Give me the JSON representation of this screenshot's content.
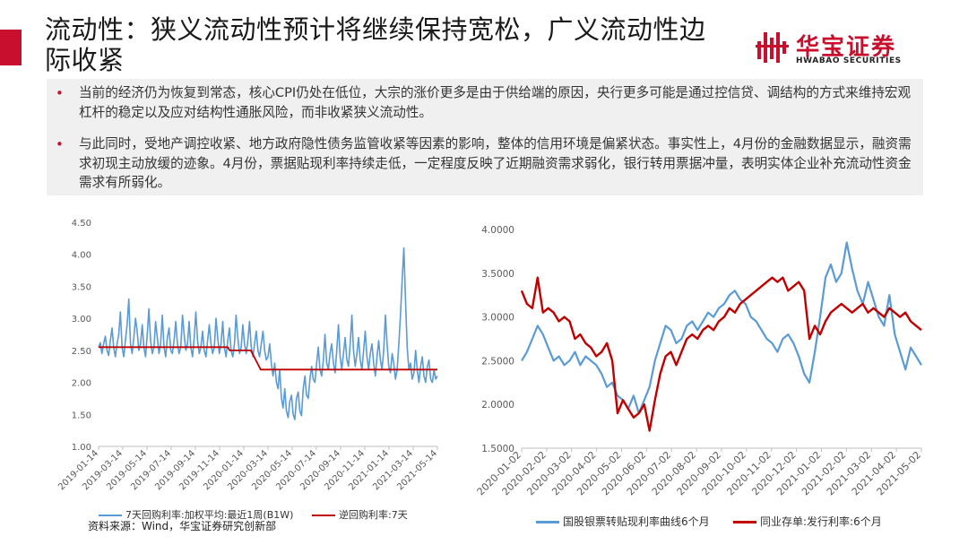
{
  "slide": {
    "title": "流动性：狭义流动性预计将继续保持宽松，广义流动性边际收紧",
    "accent_color": "#c8102e"
  },
  "logo": {
    "name_cn": "华宝证券",
    "name_en": "HWABAO SECURITIES",
    "icon": "hwabao-logo-icon"
  },
  "bullets": [
    "当前的经济仍为恢复到常态，核心CPI仍处在低位，大宗的涨价更多是由于供给端的原因，央行更多可能是通过控信贷、调结构的方式来维持宏观杠杆的稳定以及应对结构性通胀风险，而非收紧狭义流动性。",
    "与此同时，受地产调控收紧、地方政府隐性债务监管收紧等因素的影响，整体的信用环境是偏紧状态。事实性上，4月份的金融数据显示，融资需求初现主动放缓的迹象。4月份，票据贴现利率持续走低，一定程度反映了近期融资需求弱化，银行转用票据冲量，表明实体企业补充流动性资金需求有所弱化。"
  ],
  "source": "资料来源：Wind，华宝证券研究创新部",
  "chart_data": [
    {
      "type": "line",
      "ylim": [
        1.0,
        4.5
      ],
      "yticks": [
        "1.00",
        "1.50",
        "2.00",
        "2.50",
        "3.00",
        "3.50",
        "4.00",
        "4.50"
      ],
      "x_ticks": [
        "2019-01-14",
        "2019-03-14",
        "2019-05-14",
        "2019-07-14",
        "2019-09-14",
        "2019-11-14",
        "2020-01-14",
        "2020-03-14",
        "2020-05-14",
        "2020-07-14",
        "2020-09-14",
        "2020-11-14",
        "2021-01-14",
        "2021-03-14",
        "2021-05-14"
      ],
      "series": [
        {
          "name": "7天回购利率:加权平均:最近1周(B1W)",
          "color": "#5b9bd5",
          "values": [
            2.55,
            2.62,
            2.45,
            2.6,
            2.72,
            2.5,
            2.42,
            2.65,
            2.85,
            2.55,
            2.4,
            2.6,
            2.75,
            3.1,
            2.55,
            2.4,
            2.65,
            2.9,
            3.3,
            2.6,
            2.45,
            2.7,
            3.0,
            2.8,
            2.5,
            2.6,
            2.9,
            2.55,
            2.4,
            2.75,
            3.15,
            2.65,
            2.45,
            2.55,
            2.95,
            2.7,
            2.45,
            2.6,
            3.05,
            2.55,
            2.4,
            2.7,
            2.85,
            2.5,
            2.45,
            2.65,
            2.95,
            2.6,
            2.45,
            2.55,
            3.05,
            2.75,
            2.5,
            2.6,
            2.95,
            2.55,
            2.4,
            2.7,
            3.1,
            2.65,
            2.45,
            2.55,
            2.8,
            2.5,
            2.4,
            2.65,
            2.9,
            2.6,
            2.45,
            2.55,
            3.0,
            2.7,
            2.45,
            2.6,
            2.95,
            2.55,
            2.4,
            2.65,
            2.85,
            2.5,
            2.4,
            2.6,
            3.05,
            2.7,
            2.45,
            2.55,
            2.9,
            2.6,
            2.45,
            2.65,
            2.95,
            2.55,
            2.4,
            2.6,
            2.8,
            2.5,
            2.4,
            2.6,
            2.8,
            2.5,
            2.35,
            2.4,
            2.6,
            2.3,
            2.1,
            2.3,
            2.0,
            1.9,
            2.2,
            1.75,
            1.6,
            1.9,
            1.55,
            1.45,
            1.7,
            1.8,
            1.5,
            1.42,
            1.75,
            1.85,
            1.55,
            1.48,
            1.9,
            2.1,
            1.8,
            1.75,
            2.05,
            2.25,
            2.05,
            2.0,
            2.3,
            2.55,
            2.2,
            2.1,
            2.35,
            2.75,
            2.3,
            2.2,
            2.45,
            2.6,
            2.3,
            2.15,
            2.5,
            2.9,
            2.4,
            2.2,
            2.45,
            2.7,
            2.35,
            2.25,
            2.6,
            3.05,
            2.5,
            2.25,
            2.45,
            2.7,
            2.35,
            2.2,
            2.5,
            2.8,
            2.4,
            2.2,
            2.45,
            2.6,
            2.3,
            2.1,
            2.4,
            2.65,
            2.35,
            2.2,
            2.5,
            3.05,
            2.6,
            2.25,
            2.15,
            2.45,
            2.3,
            2.05,
            2.2,
            2.6,
            3.05,
            3.6,
            4.1,
            3.3,
            2.55,
            2.2,
            2.3,
            2.05,
            2.15,
            2.5,
            2.2,
            2.0,
            2.25,
            2.4,
            2.1,
            2.0,
            2.25,
            2.35,
            2.05,
            2.0,
            2.2,
            2.05,
            2.1
          ]
        },
        {
          "name": "逆回购利率:7天",
          "color": "#c00000",
          "values": [
            2.55,
            2.55,
            2.55,
            2.55,
            2.55,
            2.55,
            2.55,
            2.55,
            2.55,
            2.55,
            2.55,
            2.55,
            2.55,
            2.55,
            2.55,
            2.55,
            2.55,
            2.55,
            2.55,
            2.55,
            2.55,
            2.55,
            2.55,
            2.55,
            2.55,
            2.55,
            2.55,
            2.55,
            2.55,
            2.55,
            2.55,
            2.55,
            2.55,
            2.55,
            2.55,
            2.55,
            2.55,
            2.55,
            2.55,
            2.55,
            2.55,
            2.55,
            2.55,
            2.55,
            2.55,
            2.55,
            2.55,
            2.55,
            2.55,
            2.55,
            2.55,
            2.55,
            2.55,
            2.55,
            2.55,
            2.55,
            2.55,
            2.55,
            2.55,
            2.55,
            2.55,
            2.55,
            2.55,
            2.55,
            2.55,
            2.55,
            2.55,
            2.55,
            2.55,
            2.55,
            2.55,
            2.55,
            2.55,
            2.55,
            2.55,
            2.55,
            2.55,
            2.55,
            2.55,
            2.55,
            2.5,
            2.5,
            2.5,
            2.5,
            2.5,
            2.5,
            2.5,
            2.5,
            2.5,
            2.5,
            2.5,
            2.5,
            2.5,
            2.5,
            2.45,
            2.4,
            2.35,
            2.3,
            2.25,
            2.2,
            2.2,
            2.2,
            2.2,
            2.2,
            2.2,
            2.2,
            2.2,
            2.2,
            2.2,
            2.2,
            2.2,
            2.2,
            2.2,
            2.2,
            2.2,
            2.2,
            2.2,
            2.2,
            2.2,
            2.2,
            2.2,
            2.2,
            2.2,
            2.2,
            2.2,
            2.2,
            2.2,
            2.2,
            2.2,
            2.2,
            2.2,
            2.2,
            2.2,
            2.2,
            2.2,
            2.2,
            2.2,
            2.2,
            2.2,
            2.2,
            2.2,
            2.2,
            2.2,
            2.2,
            2.2,
            2.2,
            2.2,
            2.2,
            2.2,
            2.2,
            2.2,
            2.2,
            2.2,
            2.2,
            2.2,
            2.2,
            2.2,
            2.2,
            2.2,
            2.2,
            2.2,
            2.2,
            2.2,
            2.2,
            2.2,
            2.2,
            2.2,
            2.2,
            2.2,
            2.2,
            2.2,
            2.2,
            2.2,
            2.2,
            2.2,
            2.2,
            2.2,
            2.2,
            2.2,
            2.2,
            2.2,
            2.2,
            2.2,
            2.2,
            2.2,
            2.2,
            2.2,
            2.2,
            2.2,
            2.2,
            2.2,
            2.2,
            2.2,
            2.2,
            2.2,
            2.2,
            2.2,
            2.2,
            2.2,
            2.2,
            2.2,
            2.2,
            2.2,
            2.2,
            2.2,
            2.2,
            2.2,
            2.2
          ]
        }
      ]
    },
    {
      "type": "line",
      "ylim": [
        1.5,
        4.0
      ],
      "yticks": [
        "1.5000",
        "2.0000",
        "2.5000",
        "3.0000",
        "3.5000",
        "4.0000"
      ],
      "x_ticks": [
        "2020-01-02",
        "2020-02-02",
        "2020-03-02",
        "2020-04-02",
        "2020-05-02",
        "2020-06-02",
        "2020-07-02",
        "2020-08-02",
        "2020-09-02",
        "2020-10-02",
        "2020-11-02",
        "2020-12-02",
        "2021-01-02",
        "2021-02-02",
        "2021-03-02",
        "2021-04-02",
        "2021-05-02"
      ],
      "series": [
        {
          "name": "国股银票转贴现利率曲线6个月",
          "color": "#5b9bd5",
          "values": [
            2.5,
            2.6,
            2.75,
            2.9,
            2.8,
            2.65,
            2.5,
            2.55,
            2.45,
            2.5,
            2.6,
            2.45,
            2.55,
            2.5,
            2.45,
            2.35,
            2.2,
            2.25,
            2.1,
            2.05,
            1.95,
            2.1,
            1.9,
            2.05,
            2.2,
            2.5,
            2.7,
            2.9,
            2.85,
            2.7,
            2.75,
            2.9,
            2.95,
            2.85,
            2.95,
            3.05,
            3.0,
            3.1,
            3.15,
            3.25,
            3.3,
            3.2,
            3.15,
            3.0,
            2.95,
            2.85,
            2.75,
            2.7,
            2.6,
            2.75,
            2.8,
            2.7,
            2.55,
            2.35,
            2.25,
            2.6,
            3.0,
            3.45,
            3.6,
            3.4,
            3.5,
            3.85,
            3.55,
            3.3,
            3.15,
            3.4,
            3.2,
            3.0,
            2.9,
            3.25,
            2.8,
            2.6,
            2.4,
            2.65,
            2.55,
            2.45
          ]
        },
        {
          "name": "同业存单:发行利率:6个月",
          "color": "#c00000",
          "values": [
            3.3,
            3.15,
            3.1,
            3.45,
            3.05,
            3.1,
            3.05,
            2.95,
            3.0,
            2.95,
            2.75,
            2.8,
            2.7,
            2.65,
            2.55,
            2.6,
            2.7,
            2.5,
            1.9,
            2.05,
            1.95,
            1.85,
            1.9,
            2.0,
            1.7,
            2.05,
            2.35,
            2.55,
            2.6,
            2.45,
            2.6,
            2.75,
            2.8,
            2.75,
            2.85,
            2.9,
            2.85,
            2.95,
            3.0,
            3.1,
            3.05,
            3.15,
            3.2,
            3.25,
            3.3,
            3.35,
            3.4,
            3.45,
            3.4,
            3.45,
            3.3,
            3.35,
            3.4,
            3.3,
            2.75,
            2.9,
            2.8,
            2.95,
            3.05,
            3.1,
            3.15,
            3.1,
            3.05,
            3.1,
            3.15,
            3.05,
            3.1,
            3.05,
            3.0,
            3.1,
            3.05,
            3.0,
            3.05,
            2.95,
            2.9,
            2.85
          ]
        }
      ]
    }
  ]
}
